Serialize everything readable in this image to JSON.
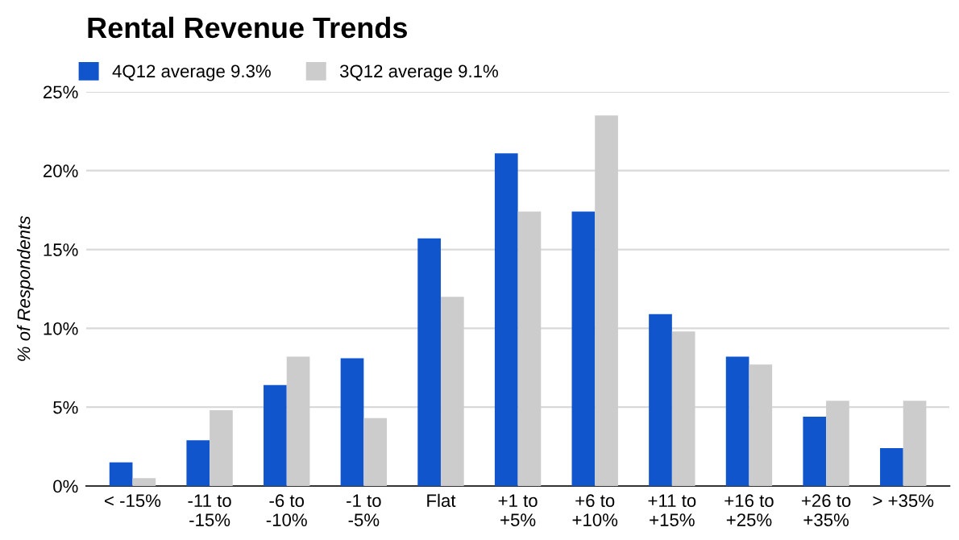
{
  "chart_data": {
    "type": "bar",
    "title": "Rental Revenue Trends",
    "ylabel": "% of Respondents",
    "categories": [
      "< -15%",
      "-11 to\n-15%",
      "-6 to\n-10%",
      "-1 to\n-5%",
      "Flat",
      "+1 to\n+5%",
      "+6 to\n+10%",
      "+11 to\n+15%",
      "+16 to\n+25%",
      "+26 to\n+35%",
      "> +35%"
    ],
    "series": [
      {
        "name": "4Q12 average 9.3%",
        "color": "#1155cc",
        "values": [
          1.5,
          2.9,
          6.4,
          8.1,
          15.7,
          21.1,
          17.4,
          10.9,
          8.2,
          4.4,
          2.4
        ]
      },
      {
        "name": "3Q12 average 9.1%",
        "color": "#cccccc",
        "values": [
          0.5,
          4.8,
          8.2,
          4.3,
          12.0,
          17.4,
          23.5,
          9.8,
          7.7,
          5.4,
          5.4
        ]
      }
    ],
    "ylim": [
      0,
      25
    ],
    "yticks": [
      {
        "value": 0,
        "label": "0%"
      },
      {
        "value": 5,
        "label": "5%"
      },
      {
        "value": 10,
        "label": "10%"
      },
      {
        "value": 15,
        "label": "15%"
      },
      {
        "value": 20,
        "label": "20%"
      },
      {
        "value": 25,
        "label": "25%"
      }
    ],
    "grid": "y",
    "legend": "top left"
  }
}
